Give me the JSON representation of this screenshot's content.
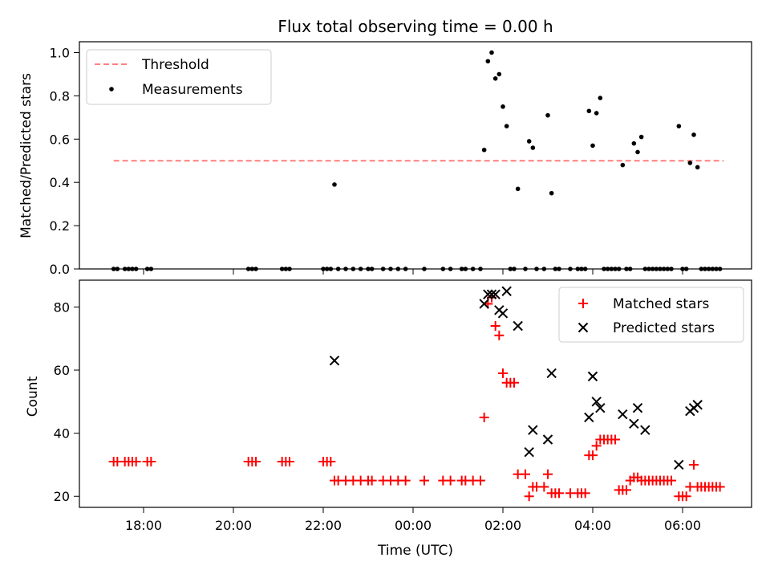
{
  "chart_data": [
    {
      "type": "scatter",
      "title": "Flux total observing time = 0.00 h",
      "xlabel": "",
      "ylabel": "Matched/Predicted stars",
      "ylim": [
        0.0,
        1.05
      ],
      "yticks": [
        "0.0",
        "0.2",
        "0.4",
        "0.6",
        "0.8",
        "1.0"
      ],
      "legend_position": "upper-left",
      "threshold": {
        "name": "Threshold",
        "value": 0.5,
        "x_start": "17:20",
        "x_end": "06:55",
        "color": "#ff7f7f"
      },
      "series": [
        {
          "name": "Measurements",
          "color": "#000000",
          "points": [
            [
              "17:20",
              0
            ],
            [
              "17:25",
              0
            ],
            [
              "17:35",
              0
            ],
            [
              "17:40",
              0
            ],
            [
              "17:45",
              0
            ],
            [
              "17:50",
              0
            ],
            [
              "18:05",
              0
            ],
            [
              "18:10",
              0
            ],
            [
              "20:20",
              0
            ],
            [
              "20:25",
              0
            ],
            [
              "20:30",
              0
            ],
            [
              "21:05",
              0
            ],
            [
              "21:10",
              0
            ],
            [
              "21:15",
              0
            ],
            [
              "22:00",
              0
            ],
            [
              "22:05",
              0
            ],
            [
              "22:10",
              0
            ],
            [
              "22:15",
              0.39
            ],
            [
              "22:20",
              0
            ],
            [
              "22:30",
              0
            ],
            [
              "22:40",
              0
            ],
            [
              "22:50",
              0
            ],
            [
              "23:00",
              0
            ],
            [
              "23:05",
              0
            ],
            [
              "23:20",
              0
            ],
            [
              "23:30",
              0
            ],
            [
              "23:40",
              0
            ],
            [
              "23:50",
              0
            ],
            [
              "00:15",
              0
            ],
            [
              "00:40",
              0
            ],
            [
              "00:50",
              0
            ],
            [
              "01:05",
              0
            ],
            [
              "01:10",
              0
            ],
            [
              "01:20",
              0
            ],
            [
              "01:30",
              0
            ],
            [
              "01:35",
              0.55
            ],
            [
              "01:40",
              0.96
            ],
            [
              "01:45",
              1.0
            ],
            [
              "01:50",
              0.88
            ],
            [
              "01:55",
              0.9
            ],
            [
              "02:00",
              0.75
            ],
            [
              "02:05",
              0.66
            ],
            [
              "02:10",
              0
            ],
            [
              "02:15",
              0
            ],
            [
              "02:20",
              0.37
            ],
            [
              "02:30",
              0
            ],
            [
              "02:35",
              0.59
            ],
            [
              "02:40",
              0.56
            ],
            [
              "02:45",
              0
            ],
            [
              "02:55",
              0
            ],
            [
              "03:00",
              0.71
            ],
            [
              "03:05",
              0.35
            ],
            [
              "03:10",
              0
            ],
            [
              "03:15",
              0
            ],
            [
              "03:30",
              0
            ],
            [
              "03:40",
              0
            ],
            [
              "03:45",
              0
            ],
            [
              "03:50",
              0
            ],
            [
              "03:55",
              0.73
            ],
            [
              "04:00",
              0.57
            ],
            [
              "04:05",
              0.72
            ],
            [
              "04:10",
              0.79
            ],
            [
              "04:15",
              0
            ],
            [
              "04:20",
              0
            ],
            [
              "04:25",
              0
            ],
            [
              "04:30",
              0
            ],
            [
              "04:35",
              0
            ],
            [
              "04:40",
              0.48
            ],
            [
              "04:45",
              0
            ],
            [
              "04:50",
              0
            ],
            [
              "04:55",
              0.58
            ],
            [
              "05:00",
              0.54
            ],
            [
              "05:05",
              0.61
            ],
            [
              "05:10",
              0
            ],
            [
              "05:15",
              0
            ],
            [
              "05:20",
              0
            ],
            [
              "05:25",
              0
            ],
            [
              "05:30",
              0
            ],
            [
              "05:35",
              0
            ],
            [
              "05:40",
              0
            ],
            [
              "05:45",
              0
            ],
            [
              "05:55",
              0.66
            ],
            [
              "06:00",
              0
            ],
            [
              "06:05",
              0
            ],
            [
              "06:10",
              0.49
            ],
            [
              "06:15",
              0.62
            ],
            [
              "06:20",
              0.47
            ],
            [
              "06:25",
              0
            ],
            [
              "06:30",
              0
            ],
            [
              "06:35",
              0
            ],
            [
              "06:40",
              0
            ],
            [
              "06:45",
              0
            ],
            [
              "06:50",
              0
            ]
          ]
        }
      ]
    },
    {
      "type": "scatter",
      "title": "",
      "xlabel": "Time (UTC)",
      "ylabel": "Count",
      "ylim": [
        16.5,
        88.5
      ],
      "yticks": [
        "20",
        "40",
        "60",
        "80"
      ],
      "xticks": [
        "18:00",
        "20:00",
        "22:00",
        "00:00",
        "02:00",
        "04:00",
        "06:00"
      ],
      "legend_position": "upper-right",
      "series": [
        {
          "name": "Matched stars",
          "marker": "plus",
          "color": "#ff0000",
          "points": [
            [
              "17:20",
              31
            ],
            [
              "17:25",
              31
            ],
            [
              "17:35",
              31
            ],
            [
              "17:40",
              31
            ],
            [
              "17:45",
              31
            ],
            [
              "17:50",
              31
            ],
            [
              "18:05",
              31
            ],
            [
              "18:10",
              31
            ],
            [
              "20:20",
              31
            ],
            [
              "20:25",
              31
            ],
            [
              "20:30",
              31
            ],
            [
              "21:05",
              31
            ],
            [
              "21:10",
              31
            ],
            [
              "21:15",
              31
            ],
            [
              "22:00",
              31
            ],
            [
              "22:05",
              31
            ],
            [
              "22:10",
              31
            ],
            [
              "22:15",
              25
            ],
            [
              "22:20",
              25
            ],
            [
              "22:30",
              25
            ],
            [
              "22:40",
              25
            ],
            [
              "22:50",
              25
            ],
            [
              "23:00",
              25
            ],
            [
              "23:05",
              25
            ],
            [
              "23:20",
              25
            ],
            [
              "23:30",
              25
            ],
            [
              "23:40",
              25
            ],
            [
              "23:50",
              25
            ],
            [
              "00:15",
              25
            ],
            [
              "00:40",
              25
            ],
            [
              "00:50",
              25
            ],
            [
              "01:05",
              25
            ],
            [
              "01:10",
              25
            ],
            [
              "01:20",
              25
            ],
            [
              "01:30",
              25
            ],
            [
              "01:35",
              45
            ],
            [
              "01:40",
              81
            ],
            [
              "01:45",
              83
            ],
            [
              "01:50",
              74
            ],
            [
              "01:55",
              71
            ],
            [
              "02:00",
              59
            ],
            [
              "02:05",
              56
            ],
            [
              "02:10",
              56
            ],
            [
              "02:15",
              56
            ],
            [
              "02:20",
              27
            ],
            [
              "02:30",
              27
            ],
            [
              "02:35",
              20
            ],
            [
              "02:40",
              23
            ],
            [
              "02:45",
              23
            ],
            [
              "02:55",
              23
            ],
            [
              "03:00",
              27
            ],
            [
              "03:05",
              21
            ],
            [
              "03:10",
              21
            ],
            [
              "03:15",
              21
            ],
            [
              "03:30",
              21
            ],
            [
              "03:40",
              21
            ],
            [
              "03:45",
              21
            ],
            [
              "03:50",
              21
            ],
            [
              "03:55",
              33
            ],
            [
              "04:00",
              33
            ],
            [
              "04:05",
              36
            ],
            [
              "04:10",
              38
            ],
            [
              "04:15",
              38
            ],
            [
              "04:20",
              38
            ],
            [
              "04:25",
              38
            ],
            [
              "04:30",
              38
            ],
            [
              "04:35",
              22
            ],
            [
              "04:40",
              22
            ],
            [
              "04:45",
              22
            ],
            [
              "04:50",
              25
            ],
            [
              "04:55",
              26
            ],
            [
              "05:00",
              26
            ],
            [
              "05:05",
              25
            ],
            [
              "05:10",
              25
            ],
            [
              "05:15",
              25
            ],
            [
              "05:20",
              25
            ],
            [
              "05:25",
              25
            ],
            [
              "05:30",
              25
            ],
            [
              "05:35",
              25
            ],
            [
              "05:40",
              25
            ],
            [
              "05:45",
              25
            ],
            [
              "05:55",
              20
            ],
            [
              "06:00",
              20
            ],
            [
              "06:05",
              20
            ],
            [
              "06:10",
              23
            ],
            [
              "06:15",
              30
            ],
            [
              "06:20",
              23
            ],
            [
              "06:25",
              23
            ],
            [
              "06:30",
              23
            ],
            [
              "06:35",
              23
            ],
            [
              "06:40",
              23
            ],
            [
              "06:45",
              23
            ],
            [
              "06:50",
              23
            ]
          ]
        },
        {
          "name": "Predicted stars",
          "marker": "x",
          "color": "#000000",
          "points": [
            [
              "22:15",
              63
            ],
            [
              "01:35",
              81
            ],
            [
              "01:40",
              84
            ],
            [
              "01:45",
              84
            ],
            [
              "01:50",
              84
            ],
            [
              "01:55",
              79
            ],
            [
              "02:00",
              78
            ],
            [
              "02:05",
              85
            ],
            [
              "02:20",
              74
            ],
            [
              "02:35",
              34
            ],
            [
              "02:40",
              41
            ],
            [
              "03:00",
              38
            ],
            [
              "03:05",
              59
            ],
            [
              "03:55",
              45
            ],
            [
              "04:00",
              58
            ],
            [
              "04:05",
              50
            ],
            [
              "04:10",
              48
            ],
            [
              "04:40",
              46
            ],
            [
              "04:55",
              43
            ],
            [
              "05:00",
              48
            ],
            [
              "05:10",
              41
            ],
            [
              "05:55",
              30
            ],
            [
              "06:10",
              47
            ],
            [
              "06:15",
              48
            ],
            [
              "06:20",
              49
            ]
          ]
        }
      ]
    }
  ]
}
